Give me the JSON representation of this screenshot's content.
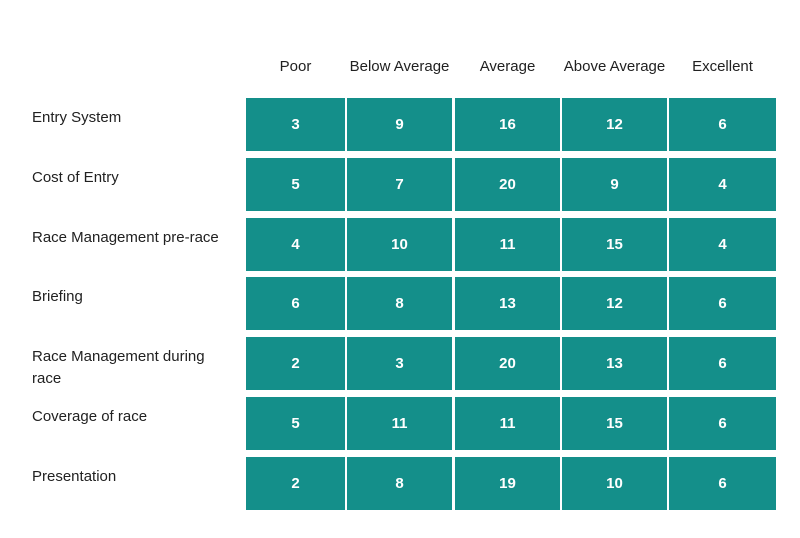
{
  "chart_data": {
    "type": "table",
    "columns": [
      "Poor",
      "Below Average",
      "Average",
      "Above Average",
      "Excellent"
    ],
    "rows": [
      {
        "label": "Entry System",
        "values": [
          3,
          9,
          16,
          12,
          6
        ]
      },
      {
        "label": "Cost of Entry",
        "values": [
          5,
          7,
          20,
          9,
          4
        ]
      },
      {
        "label": "Race Management pre-race",
        "values": [
          4,
          10,
          11,
          15,
          4
        ]
      },
      {
        "label": "Briefing",
        "values": [
          6,
          8,
          13,
          12,
          6
        ]
      },
      {
        "label": "Race Management during race",
        "values": [
          2,
          3,
          20,
          13,
          6
        ]
      },
      {
        "label": "Coverage of race",
        "values": [
          5,
          11,
          11,
          15,
          6
        ]
      },
      {
        "label": "Presentation",
        "values": [
          2,
          8,
          19,
          10,
          6
        ]
      }
    ],
    "colors": {
      "cell": "#148f8a",
      "cell_text": "#ffffff"
    }
  }
}
